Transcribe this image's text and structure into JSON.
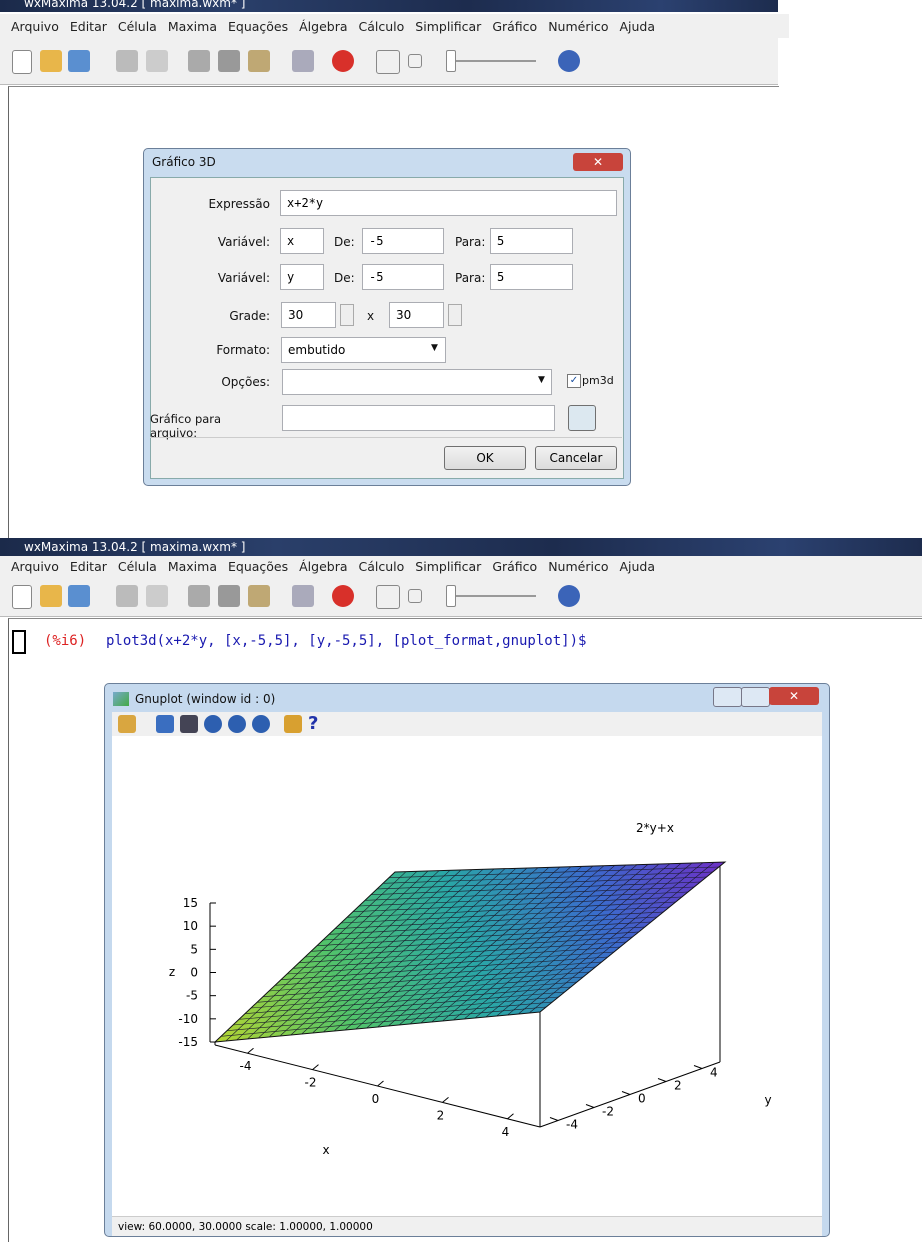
{
  "windows": [
    {
      "title": "wxMaxima 13.04.2 [ maxima.wxm* ]",
      "menu": [
        "Arquivo",
        "Editar",
        "Célula",
        "Maxima",
        "Equações",
        "Álgebra",
        "Cálculo",
        "Simplificar",
        "Gráfico",
        "Numérico",
        "Ajuda"
      ]
    },
    {
      "title": "wxMaxima 13.04.2 [ maxima.wxm* ]",
      "menu": [
        "Arquivo",
        "Editar",
        "Célula",
        "Maxima",
        "Equações",
        "Álgebra",
        "Cálculo",
        "Simplificar",
        "Gráfico",
        "Numérico",
        "Ajuda"
      ]
    }
  ],
  "dialog": {
    "title": "Gráfico 3D",
    "expression_label": "Expressão",
    "expression": "x+2*y",
    "variables": [
      {
        "label": "Variável:",
        "name": "x",
        "from_label": "De:",
        "from": "-5",
        "to_label": "Para:",
        "to": "5"
      },
      {
        "label": "Variável:",
        "name": "y",
        "from_label": "De:",
        "from": "-5",
        "to_label": "Para:",
        "to": "5"
      }
    ],
    "grid_label": "Grade:",
    "grid_x": "30",
    "grid_sep": "x",
    "grid_y": "30",
    "format_label": "Formato:",
    "format": "embutido",
    "options_label": "Opções:",
    "pm3d": "pm3d",
    "file_label": "Gráfico para arquivo:",
    "ok": "OK",
    "cancel": "Cancelar"
  },
  "input": {
    "prompt": "(%i6)",
    "code": "plot3d(x+2*y, [x,-5,5], [y,-5,5], [plot_format,gnuplot])$"
  },
  "gnuplot": {
    "title": "Gnuplot (window id : 0)",
    "key": "2*y+x",
    "zlabel": "z",
    "zticks": [
      "15",
      "10",
      "5",
      "0",
      "-5",
      "-10",
      "-15"
    ],
    "xlabel": "x",
    "xticks": [
      "-4",
      "-2",
      "0",
      "2",
      "4"
    ],
    "ylabel": "y",
    "yticks": [
      "-4",
      "-2",
      "0",
      "2",
      "4"
    ],
    "status": "view: 60.0000, 30.0000  scale: 1.00000, 1.00000"
  }
}
